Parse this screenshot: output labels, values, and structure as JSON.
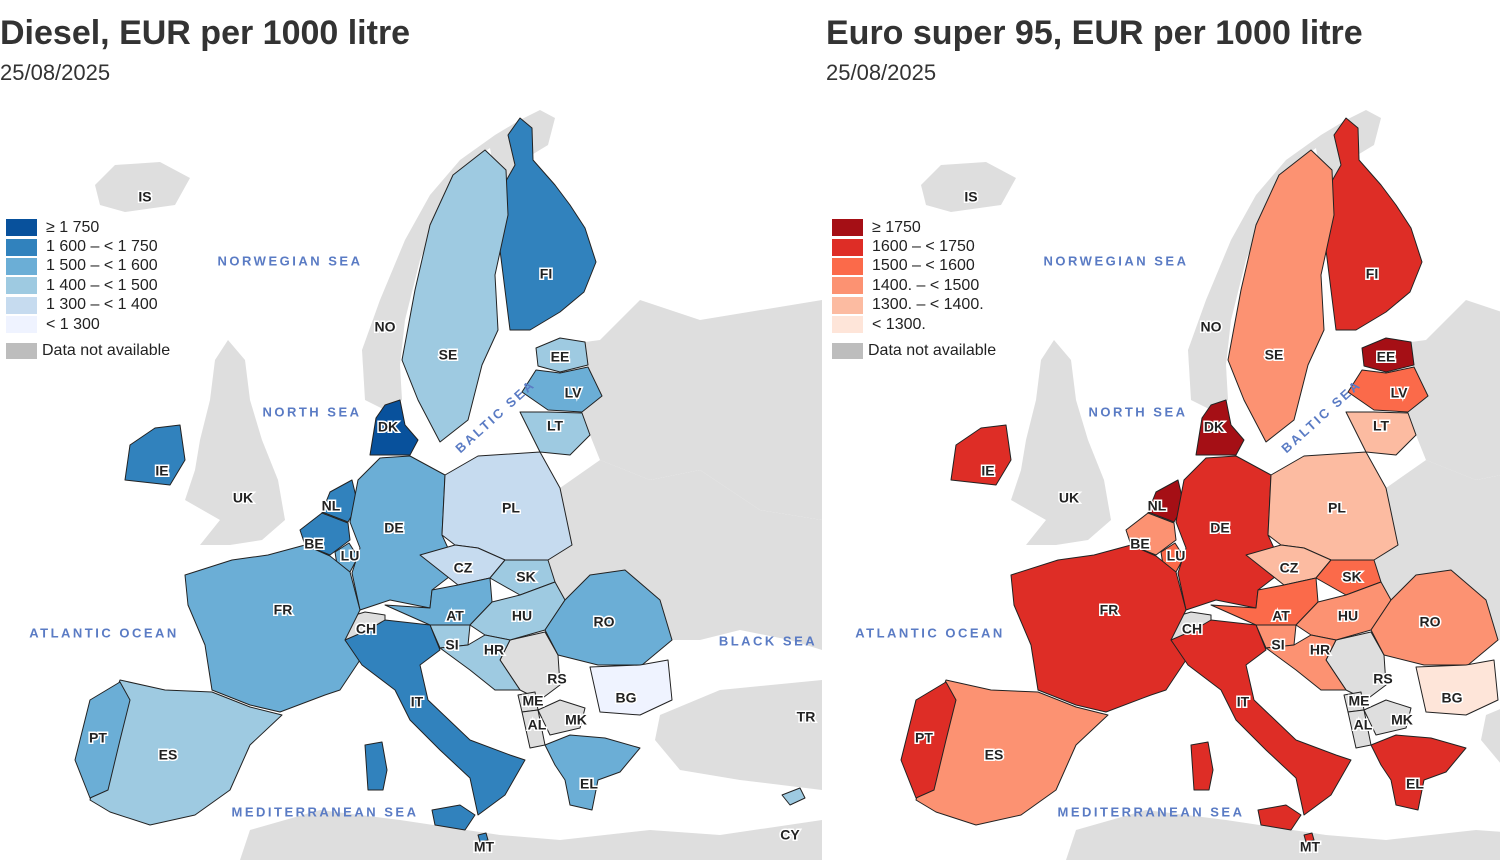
{
  "maps": [
    {
      "id": "diesel",
      "title": "Diesel, EUR per 1000 litre",
      "date": "25/08/2025",
      "legend": [
        {
          "label": "≥ 1 750",
          "color": "#08519c"
        },
        {
          "label": "1 600 – < 1 750",
          "color": "#3182bd"
        },
        {
          "label": "1 500 – < 1 600",
          "color": "#6baed6"
        },
        {
          "label": "1 400 – < 1 500",
          "color": "#9ecae1"
        },
        {
          "label": "1 300 – < 1 400",
          "color": "#c6dbef"
        },
        {
          "label": "< 1 300",
          "color": "#eff3ff"
        }
      ],
      "na_label": "Data not available",
      "na_color": "#bdbdbd",
      "country_class": {
        "FI": 1,
        "SE": 3,
        "EE": 3,
        "LV": 2,
        "LT": 3,
        "DK": 0,
        "IE": 1,
        "NL": 1,
        "BE": 1,
        "LU": 2,
        "DE": 2,
        "PL": 4,
        "CZ": 4,
        "SK": 3,
        "AT": 2,
        "HU": 3,
        "SI": 3,
        "HR": 3,
        "RO": 2,
        "BG": 5,
        "FR": 2,
        "IT": 1,
        "ES": 3,
        "PT": 2,
        "EL": 2,
        "MT": 1,
        "CY": 3
      }
    },
    {
      "id": "petrol",
      "title": "Euro super 95, EUR per 1000 litre",
      "date": "25/08/2025",
      "legend": [
        {
          "label": "≥ 1750",
          "color": "#a50f15"
        },
        {
          "label": "1600 – < 1750",
          "color": "#de2d26"
        },
        {
          "label": "1500 – < 1600",
          "color": "#fb6a4a"
        },
        {
          "label": "1400. – < 1500",
          "color": "#fc9272"
        },
        {
          "label": "1300. – < 1400.",
          "color": "#fcbba1"
        },
        {
          "label": "< 1300.",
          "color": "#fee5d9"
        }
      ],
      "na_label": "Data not available",
      "na_color": "#bdbdbd",
      "country_class": {
        "FI": 1,
        "SE": 3,
        "EE": 0,
        "LV": 2,
        "LT": 4,
        "DK": 0,
        "IE": 1,
        "NL": 0,
        "BE": 3,
        "LU": 2,
        "DE": 1,
        "PL": 4,
        "CZ": 4,
        "SK": 2,
        "AT": 2,
        "HU": 3,
        "SI": 3,
        "HR": 3,
        "RO": 3,
        "BG": 5,
        "FR": 1,
        "IT": 1,
        "ES": 3,
        "PT": 1,
        "EL": 1,
        "MT": 1,
        "CY": 1
      }
    }
  ],
  "country_labels": [
    "IS",
    "NO",
    "SE",
    "FI",
    "EE",
    "LV",
    "LT",
    "DK",
    "IE",
    "UK",
    "NL",
    "BE",
    "LU",
    "DE",
    "PL",
    "CZ",
    "SK",
    "AT",
    "HU",
    "FR",
    "CH",
    "SI",
    "HR",
    "RO",
    "RS",
    "BG",
    "ME",
    "AL",
    "MK",
    "IT",
    "PT",
    "ES",
    "EL",
    "TR",
    "MT",
    "CY"
  ],
  "seas": [
    "NORWEGIAN SEA",
    "NORTH SEA",
    "BALTIC SEA",
    "ATLANTIC OCEAN",
    "BLACK SEA",
    "MEDITERRANEAN SEA"
  ]
}
